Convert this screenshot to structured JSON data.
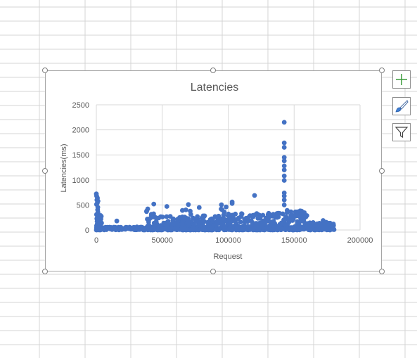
{
  "chart_data": {
    "type": "scatter",
    "title": "Latencies",
    "xlabel": "Request",
    "ylabel": "Latencies(ms)",
    "xlim": [
      0,
      200000
    ],
    "ylim": [
      0,
      2500
    ],
    "x_ticks": [
      0,
      50000,
      100000,
      150000,
      200000
    ],
    "y_ticks": [
      0,
      500,
      1000,
      1500,
      2000,
      2500
    ],
    "grid": true,
    "legend": "none",
    "marker_color": "#4472c4",
    "base_band": {
      "x_range": [
        0,
        180000
      ],
      "y_range": [
        0,
        60
      ]
    },
    "clusters": [
      {
        "x_range": [
          0,
          1500
        ],
        "y_range": [
          0,
          700
        ]
      },
      {
        "x_range": [
          1500,
          4000
        ],
        "y_range": [
          0,
          300
        ]
      },
      {
        "x_range": [
          38000,
          44000
        ],
        "y_range": [
          0,
          520
        ]
      },
      {
        "x_range": [
          44000,
          70000
        ],
        "y_range": [
          0,
          280
        ]
      },
      {
        "x_range": [
          65000,
          72000
        ],
        "y_range": [
          0,
          540
        ]
      },
      {
        "x_range": [
          72000,
          94000
        ],
        "y_range": [
          0,
          290
        ]
      },
      {
        "x_range": [
          94000,
          100000
        ],
        "y_range": [
          0,
          600
        ]
      },
      {
        "x_range": [
          100000,
          138000
        ],
        "y_range": [
          0,
          340
        ]
      },
      {
        "x_range": [
          138000,
          145000
        ],
        "y_range": [
          0,
          420
        ]
      },
      {
        "x_range": [
          145000,
          160000
        ],
        "y_range": [
          0,
          390
        ]
      },
      {
        "x_range": [
          160000,
          180000
        ],
        "y_range": [
          0,
          160
        ]
      }
    ],
    "points": [
      [
        0,
        720
      ],
      [
        200,
        680
      ],
      [
        400,
        600
      ],
      [
        1500,
        200
      ],
      [
        15500,
        180
      ],
      [
        53500,
        470
      ],
      [
        78000,
        450
      ],
      [
        103000,
        560
      ],
      [
        103000,
        530
      ],
      [
        120000,
        690
      ],
      [
        172000,
        190
      ],
      [
        142500,
        2150
      ],
      [
        142500,
        1740
      ],
      [
        142500,
        1650
      ],
      [
        142500,
        1450
      ],
      [
        142500,
        1380
      ],
      [
        142500,
        1280
      ],
      [
        142500,
        1200
      ],
      [
        142500,
        1080
      ],
      [
        142500,
        990
      ],
      [
        142500,
        740
      ],
      [
        142500,
        680
      ],
      [
        142500,
        600
      ],
      [
        142500,
        500
      ]
    ]
  },
  "ui": {
    "add_element_icon": "plus-icon",
    "chart_styles_icon": "brush-icon",
    "chart_filters_icon": "funnel-icon"
  }
}
